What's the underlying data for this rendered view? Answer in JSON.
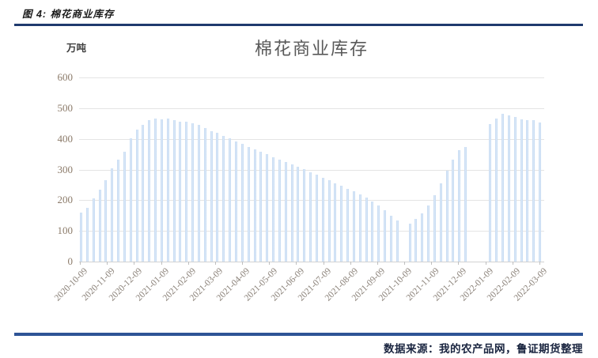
{
  "page": {
    "figure_label": "图 4: 棉花商业库存",
    "source_note": "数据来源：我的农产品网，鲁证期货整理"
  },
  "colors": {
    "top_rule": "#1f3a6e",
    "bottom_rule": "#2e5496",
    "bar_fill": "#e0ecfa",
    "bar_edge": "#bfd6f0",
    "gridline": "#e4e4e4",
    "axis_line": "#d2d2d2",
    "tick": "#bfbfbf",
    "title_text": "#595959",
    "y_label_text": "#8c7b6a",
    "x_label_text": "#8a8178",
    "unit_text": "#3f3f3f",
    "figure_label_text": "#1a1a1a",
    "source_text": "#1a2540"
  },
  "chart_data": {
    "type": "bar",
    "title": "棉花商业库存",
    "series_name": "棉花商业库存",
    "ylabel": "万吨",
    "xlabel": "",
    "ylim": [
      0,
      600
    ],
    "yticks": [
      0,
      100,
      200,
      300,
      400,
      500,
      600
    ],
    "grid": true,
    "legend_position": "none",
    "x_tick_labels": [
      "2020-10-09",
      "2020-11-09",
      "2020-12-09",
      "2021-01-09",
      "2021-02-09",
      "2021-03-09",
      "2021-04-09",
      "2021-05-09",
      "2021-06-09",
      "2021-07-09",
      "2021-08-09",
      "2021-09-09",
      "2021-10-09",
      "2021-11-09",
      "2021-12-09",
      "2022-01-09",
      "2022-02-09",
      "2022-03-09"
    ],
    "categories": [
      "2020-10-09",
      "2020-10-16",
      "2020-10-23",
      "2020-10-30",
      "2020-11-06",
      "2020-11-13",
      "2020-11-20",
      "2020-11-27",
      "2020-12-04",
      "2020-12-11",
      "2020-12-18",
      "2020-12-25",
      "2021-01-01",
      "2021-01-08",
      "2021-01-15",
      "2021-01-22",
      "2021-01-29",
      "2021-02-05",
      "2021-02-12",
      "2021-02-19",
      "2021-02-26",
      "2021-03-05",
      "2021-03-12",
      "2021-03-19",
      "2021-03-26",
      "2021-04-02",
      "2021-04-09",
      "2021-04-16",
      "2021-04-23",
      "2021-04-30",
      "2021-05-07",
      "2021-05-14",
      "2021-05-21",
      "2021-05-28",
      "2021-06-04",
      "2021-06-11",
      "2021-06-18",
      "2021-06-25",
      "2021-07-02",
      "2021-07-09",
      "2021-07-16",
      "2021-07-23",
      "2021-07-30",
      "2021-08-06",
      "2021-08-13",
      "2021-08-20",
      "2021-08-27",
      "2021-09-03",
      "2021-09-10",
      "2021-09-17",
      "2021-09-24",
      "2021-10-01",
      "2021-10-08",
      "2021-10-15",
      "2021-10-22",
      "2021-10-29",
      "2021-11-05",
      "2021-11-12",
      "2021-11-19",
      "2021-11-26",
      "2021-12-03",
      "2021-12-10",
      "2021-12-17",
      "2021-12-24",
      "2021-12-31",
      "2022-01-07",
      "2022-01-14",
      "2022-01-21",
      "2022-01-28",
      "2022-02-04",
      "2022-02-11",
      "2022-02-18",
      "2022-02-25",
      "2022-03-04",
      "2022-03-11"
    ],
    "values": [
      160,
      176,
      205,
      235,
      266,
      303,
      331,
      358,
      401,
      430,
      446,
      462,
      466,
      463,
      466,
      460,
      457,
      455,
      451,
      445,
      436,
      426,
      419,
      410,
      401,
      392,
      383,
      374,
      365,
      357,
      349,
      341,
      333,
      325,
      317,
      309,
      301,
      292,
      283,
      274,
      265,
      256,
      247,
      238,
      228,
      218,
      208,
      196,
      183,
      168,
      150,
      135,
      null,
      124,
      139,
      156,
      184,
      216,
      256,
      297,
      331,
      363,
      374,
      null,
      null,
      null,
      447,
      466,
      481,
      477,
      470,
      464,
      461,
      462,
      454
    ]
  }
}
